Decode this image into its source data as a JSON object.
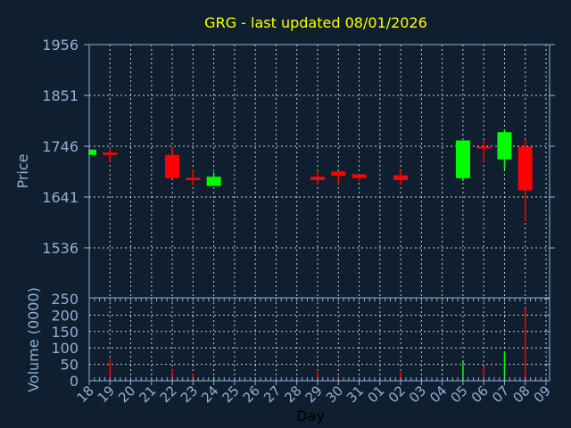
{
  "chart_data": [
    {
      "type": "candlestick",
      "title": "GRG - last updated 08/01/2026",
      "xlabel": "Day",
      "ylabel": "Price",
      "yticks": [
        1956,
        1851,
        1746,
        1641,
        1536
      ],
      "ylim": [
        1433,
        1956
      ],
      "grid": true,
      "x": [
        "18",
        "19",
        "20",
        "21",
        "22",
        "23",
        "24",
        "25",
        "26",
        "27",
        "28",
        "29",
        "30",
        "31",
        "01",
        "02",
        "03",
        "04",
        "05",
        "06",
        "07",
        "08",
        "09"
      ],
      "candles": [
        {
          "day": "18",
          "open": 1728,
          "high": 1739,
          "low": 1728,
          "close": 1739
        },
        {
          "day": "19",
          "open": 1733,
          "high": 1743,
          "low": 1712,
          "close": 1728
        },
        {
          "day": "22",
          "open": 1728,
          "high": 1743,
          "low": 1680,
          "close": 1680
        },
        {
          "day": "23",
          "open": 1681,
          "high": 1698,
          "low": 1665,
          "close": 1676
        },
        {
          "day": "24",
          "open": 1664,
          "high": 1692,
          "low": 1664,
          "close": 1683
        },
        {
          "day": "29",
          "open": 1683,
          "high": 1696,
          "low": 1666,
          "close": 1676
        },
        {
          "day": "30",
          "open": 1694,
          "high": 1694,
          "low": 1668,
          "close": 1685
        },
        {
          "day": "31",
          "open": 1688,
          "high": 1688,
          "low": 1674,
          "close": 1680
        },
        {
          "day": "02",
          "open": 1686,
          "high": 1696,
          "low": 1666,
          "close": 1676
        },
        {
          "day": "05",
          "open": 1680,
          "high": 1758,
          "low": 1674,
          "close": 1758
        },
        {
          "day": "06",
          "open": 1745,
          "high": 1758,
          "low": 1712,
          "close": 1742
        },
        {
          "day": "07",
          "open": 1719,
          "high": 1781,
          "low": 1698,
          "close": 1775
        },
        {
          "day": "08",
          "open": 1745,
          "high": 1760,
          "low": 1591,
          "close": 1655
        }
      ],
      "up_color": "#00ff00",
      "down_color": "#ff0000"
    },
    {
      "type": "bar",
      "ylabel": "Volume (0000)",
      "yticks": [
        250,
        200,
        150,
        100,
        50,
        0
      ],
      "ylim": [
        0,
        250
      ],
      "grid": true,
      "bars": [
        {
          "day": "19",
          "value": 66,
          "dir": "down"
        },
        {
          "day": "22",
          "value": 34,
          "dir": "down"
        },
        {
          "day": "23",
          "value": 22,
          "dir": "down"
        },
        {
          "day": "24",
          "value": 12,
          "dir": "up"
        },
        {
          "day": "29",
          "value": 32,
          "dir": "down"
        },
        {
          "day": "30",
          "value": 14,
          "dir": "down"
        },
        {
          "day": "31",
          "value": 9,
          "dir": "down"
        },
        {
          "day": "02",
          "value": 28,
          "dir": "down"
        },
        {
          "day": "05",
          "value": 59,
          "dir": "up"
        },
        {
          "day": "06",
          "value": 44,
          "dir": "down"
        },
        {
          "day": "07",
          "value": 88,
          "dir": "up"
        },
        {
          "day": "08",
          "value": 222,
          "dir": "down"
        }
      ]
    }
  ],
  "colors": {
    "background": "#0f1f2f",
    "axis": "#8fb0d8",
    "title": "#ffff00",
    "grid": "#c8c8c8",
    "xlabel": "#000000"
  }
}
